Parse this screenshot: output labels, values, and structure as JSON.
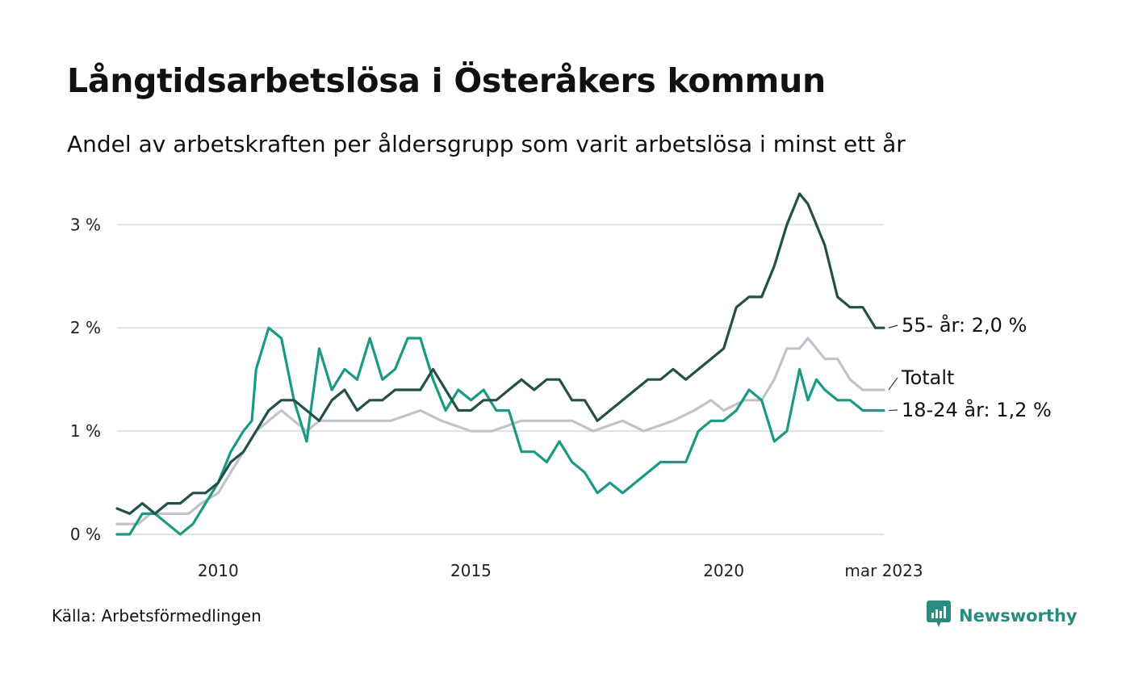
{
  "title": "Långtidsarbetslösa i Österåkers kommun",
  "subtitle": "Andel av arbetskraften per åldersgrupp som varit arbetslösa i minst ett år",
  "source": "Källa: Arbetsförmedlingen",
  "brand": {
    "name": "Newsworthy",
    "icon": "newsworthy-logo-icon",
    "color": "#2a8c7e"
  },
  "chart_data": {
    "type": "line",
    "title": "Långtidsarbetslösa i Österåkers kommun",
    "subtitle": "Andel av arbetskraften per åldersgrupp som varit arbetslösa i minst ett år",
    "xlabel": "",
    "ylabel": "",
    "y_unit": "%",
    "ylim": [
      0,
      3.3
    ],
    "xlim": [
      "2008-01",
      "2023-03"
    ],
    "grid": true,
    "legend": "inline labels at line ends",
    "y_ticks": [
      {
        "value": 0,
        "label": "0 %"
      },
      {
        "value": 1,
        "label": "1 %"
      },
      {
        "value": 2,
        "label": "2 %"
      },
      {
        "value": 3,
        "label": "3 %"
      }
    ],
    "x_ticks": [
      {
        "value": "2010-01",
        "label": "2010"
      },
      {
        "value": "2015-01",
        "label": "2015"
      },
      {
        "value": "2020-01",
        "label": "2020"
      },
      {
        "value": "2023-03",
        "label": "mar 2023"
      }
    ],
    "series": [
      {
        "name": "Totalt",
        "end_label": "Totalt",
        "color": "#c4c0cc",
        "points": [
          [
            "2008-01",
            0.1
          ],
          [
            "2008-06",
            0.1
          ],
          [
            "2008-09",
            0.2
          ],
          [
            "2009-01",
            0.2
          ],
          [
            "2009-06",
            0.2
          ],
          [
            "2009-09",
            0.3
          ],
          [
            "2010-01",
            0.4
          ],
          [
            "2010-04",
            0.6
          ],
          [
            "2010-07",
            0.8
          ],
          [
            "2010-10",
            1.0
          ],
          [
            "2011-01",
            1.1
          ],
          [
            "2011-04",
            1.2
          ],
          [
            "2011-07",
            1.1
          ],
          [
            "2011-10",
            1.0
          ],
          [
            "2012-01",
            1.1
          ],
          [
            "2012-06",
            1.1
          ],
          [
            "2013-01",
            1.1
          ],
          [
            "2013-06",
            1.1
          ],
          [
            "2014-01",
            1.2
          ],
          [
            "2014-06",
            1.1
          ],
          [
            "2015-01",
            1.0
          ],
          [
            "2015-06",
            1.0
          ],
          [
            "2016-01",
            1.1
          ],
          [
            "2016-06",
            1.1
          ],
          [
            "2017-01",
            1.1
          ],
          [
            "2017-06",
            1.0
          ],
          [
            "2018-01",
            1.1
          ],
          [
            "2018-06",
            1.0
          ],
          [
            "2019-01",
            1.1
          ],
          [
            "2019-06",
            1.2
          ],
          [
            "2019-10",
            1.3
          ],
          [
            "2020-01",
            1.2
          ],
          [
            "2020-06",
            1.3
          ],
          [
            "2020-10",
            1.3
          ],
          [
            "2021-01",
            1.5
          ],
          [
            "2021-04",
            1.8
          ],
          [
            "2021-07",
            1.8
          ],
          [
            "2021-09",
            1.9
          ],
          [
            "2021-11",
            1.8
          ],
          [
            "2022-01",
            1.7
          ],
          [
            "2022-04",
            1.7
          ],
          [
            "2022-07",
            1.5
          ],
          [
            "2022-10",
            1.4
          ],
          [
            "2023-01",
            1.4
          ],
          [
            "2023-03",
            1.4
          ]
        ]
      },
      {
        "name": "18-24 år",
        "end_label": "18-24 år: 1,2 %",
        "color": "#1a9985",
        "points": [
          [
            "2008-01",
            0.0
          ],
          [
            "2008-04",
            0.0
          ],
          [
            "2008-07",
            0.2
          ],
          [
            "2008-10",
            0.2
          ],
          [
            "2009-01",
            0.1
          ],
          [
            "2009-04",
            0.0
          ],
          [
            "2009-07",
            0.1
          ],
          [
            "2009-10",
            0.3
          ],
          [
            "2010-01",
            0.5
          ],
          [
            "2010-04",
            0.8
          ],
          [
            "2010-07",
            1.0
          ],
          [
            "2010-09",
            1.1
          ],
          [
            "2010-10",
            1.6
          ],
          [
            "2011-01",
            2.0
          ],
          [
            "2011-04",
            1.9
          ],
          [
            "2011-07",
            1.3
          ],
          [
            "2011-10",
            0.9
          ],
          [
            "2012-01",
            1.8
          ],
          [
            "2012-04",
            1.4
          ],
          [
            "2012-07",
            1.6
          ],
          [
            "2012-10",
            1.5
          ],
          [
            "2013-01",
            1.9
          ],
          [
            "2013-04",
            1.5
          ],
          [
            "2013-07",
            1.6
          ],
          [
            "2013-10",
            1.9
          ],
          [
            "2014-01",
            1.9
          ],
          [
            "2014-04",
            1.5
          ],
          [
            "2014-07",
            1.2
          ],
          [
            "2014-10",
            1.4
          ],
          [
            "2015-01",
            1.3
          ],
          [
            "2015-04",
            1.4
          ],
          [
            "2015-07",
            1.2
          ],
          [
            "2015-10",
            1.2
          ],
          [
            "2016-01",
            0.8
          ],
          [
            "2016-04",
            0.8
          ],
          [
            "2016-07",
            0.7
          ],
          [
            "2016-10",
            0.9
          ],
          [
            "2017-01",
            0.7
          ],
          [
            "2017-04",
            0.6
          ],
          [
            "2017-07",
            0.4
          ],
          [
            "2017-10",
            0.5
          ],
          [
            "2018-01",
            0.4
          ],
          [
            "2018-04",
            0.5
          ],
          [
            "2018-07",
            0.6
          ],
          [
            "2018-10",
            0.7
          ],
          [
            "2019-01",
            0.7
          ],
          [
            "2019-04",
            0.7
          ],
          [
            "2019-07",
            1.0
          ],
          [
            "2019-10",
            1.1
          ],
          [
            "2020-01",
            1.1
          ],
          [
            "2020-04",
            1.2
          ],
          [
            "2020-07",
            1.4
          ],
          [
            "2020-10",
            1.3
          ],
          [
            "2021-01",
            0.9
          ],
          [
            "2021-04",
            1.0
          ],
          [
            "2021-07",
            1.6
          ],
          [
            "2021-09",
            1.3
          ],
          [
            "2021-11",
            1.5
          ],
          [
            "2022-01",
            1.4
          ],
          [
            "2022-04",
            1.3
          ],
          [
            "2022-07",
            1.3
          ],
          [
            "2022-10",
            1.2
          ],
          [
            "2023-01",
            1.2
          ],
          [
            "2023-03",
            1.2
          ]
        ]
      },
      {
        "name": "55- år",
        "end_label": "55- år: 2,0 %",
        "color": "#23504a",
        "points": [
          [
            "2008-01",
            0.25
          ],
          [
            "2008-04",
            0.2
          ],
          [
            "2008-07",
            0.3
          ],
          [
            "2008-10",
            0.2
          ],
          [
            "2009-01",
            0.3
          ],
          [
            "2009-04",
            0.3
          ],
          [
            "2009-07",
            0.4
          ],
          [
            "2009-10",
            0.4
          ],
          [
            "2010-01",
            0.5
          ],
          [
            "2010-04",
            0.7
          ],
          [
            "2010-07",
            0.8
          ],
          [
            "2010-10",
            1.0
          ],
          [
            "2011-01",
            1.2
          ],
          [
            "2011-04",
            1.3
          ],
          [
            "2011-07",
            1.3
          ],
          [
            "2011-10",
            1.2
          ],
          [
            "2012-01",
            1.1
          ],
          [
            "2012-04",
            1.3
          ],
          [
            "2012-07",
            1.4
          ],
          [
            "2012-10",
            1.2
          ],
          [
            "2013-01",
            1.3
          ],
          [
            "2013-04",
            1.3
          ],
          [
            "2013-07",
            1.4
          ],
          [
            "2013-10",
            1.4
          ],
          [
            "2014-01",
            1.4
          ],
          [
            "2014-04",
            1.6
          ],
          [
            "2014-07",
            1.4
          ],
          [
            "2014-10",
            1.2
          ],
          [
            "2015-01",
            1.2
          ],
          [
            "2015-04",
            1.3
          ],
          [
            "2015-07",
            1.3
          ],
          [
            "2015-10",
            1.4
          ],
          [
            "2016-01",
            1.5
          ],
          [
            "2016-04",
            1.4
          ],
          [
            "2016-07",
            1.5
          ],
          [
            "2016-10",
            1.5
          ],
          [
            "2017-01",
            1.3
          ],
          [
            "2017-04",
            1.3
          ],
          [
            "2017-07",
            1.1
          ],
          [
            "2017-10",
            1.2
          ],
          [
            "2018-01",
            1.3
          ],
          [
            "2018-04",
            1.4
          ],
          [
            "2018-07",
            1.5
          ],
          [
            "2018-10",
            1.5
          ],
          [
            "2019-01",
            1.6
          ],
          [
            "2019-04",
            1.5
          ],
          [
            "2019-07",
            1.6
          ],
          [
            "2019-10",
            1.7
          ],
          [
            "2020-01",
            1.8
          ],
          [
            "2020-04",
            2.2
          ],
          [
            "2020-07",
            2.3
          ],
          [
            "2020-10",
            2.3
          ],
          [
            "2021-01",
            2.6
          ],
          [
            "2021-04",
            3.0
          ],
          [
            "2021-07",
            3.3
          ],
          [
            "2021-09",
            3.2
          ],
          [
            "2021-11",
            3.0
          ],
          [
            "2022-01",
            2.8
          ],
          [
            "2022-04",
            2.3
          ],
          [
            "2022-07",
            2.2
          ],
          [
            "2022-10",
            2.2
          ],
          [
            "2023-01",
            2.0
          ],
          [
            "2023-03",
            2.0
          ]
        ]
      }
    ]
  }
}
